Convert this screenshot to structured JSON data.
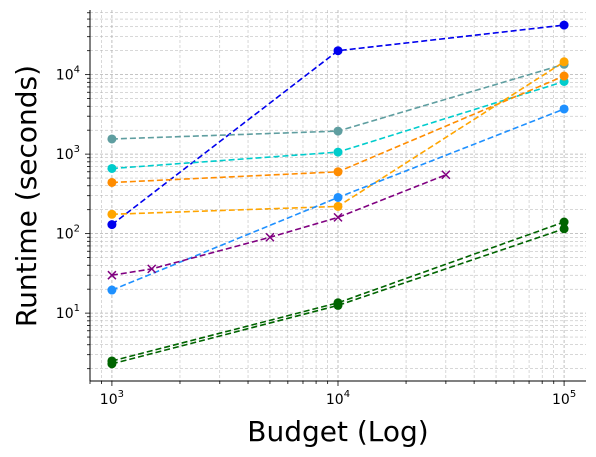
{
  "chart_data": {
    "type": "line",
    "xlabel": "Budget (Log)",
    "ylabel": "Runtime (seconds)",
    "xscale": "log",
    "yscale": "log",
    "xlim": [
      800,
      125000
    ],
    "ylim": [
      1.4,
      65000
    ],
    "grid": true,
    "x_ticks": [
      {
        "value": 1000,
        "base": "10",
        "exp": "3"
      },
      {
        "value": 10000,
        "base": "10",
        "exp": "4"
      },
      {
        "value": 100000,
        "base": "10",
        "exp": "5"
      }
    ],
    "y_ticks": [
      {
        "value": 10,
        "base": "10",
        "exp": "1"
      },
      {
        "value": 100,
        "base": "10",
        "exp": "2"
      },
      {
        "value": 1000,
        "base": "10",
        "exp": "3"
      },
      {
        "value": 10000,
        "base": "10",
        "exp": "4"
      }
    ],
    "series": [
      {
        "color": "#0000ee",
        "marker": "circle",
        "x": [
          1000,
          10000,
          100000
        ],
        "y": [
          130,
          20000,
          42000
        ]
      },
      {
        "color": "#5f9ea0",
        "marker": "circle",
        "x": [
          1000,
          10000,
          100000
        ],
        "y": [
          1550,
          1950,
          13500
        ]
      },
      {
        "color": "#00cccc",
        "marker": "circle",
        "x": [
          1000,
          10000,
          100000
        ],
        "y": [
          660,
          1060,
          8200
        ]
      },
      {
        "color": "#ff8c00",
        "marker": "circle",
        "x": [
          1000,
          10000,
          100000
        ],
        "y": [
          440,
          600,
          9600
        ]
      },
      {
        "color": "#ffa500",
        "marker": "circle",
        "x": [
          1000,
          10000,
          100000
        ],
        "y": [
          175,
          220,
          14500
        ]
      },
      {
        "color": "#1e90ff",
        "marker": "circle",
        "x": [
          1000,
          10000,
          100000
        ],
        "y": [
          19.5,
          285,
          3700
        ]
      },
      {
        "color": "#800080",
        "marker": "x",
        "x": [
          1000,
          1500,
          5000,
          10000,
          30000
        ],
        "y": [
          30,
          36,
          90,
          160,
          550
        ]
      },
      {
        "color": "#006400",
        "marker": "circle",
        "x": [
          1000,
          10000,
          100000
        ],
        "y": [
          2.5,
          13.5,
          140
        ]
      },
      {
        "color": "#006400",
        "marker": "circle",
        "x": [
          1000,
          10000,
          100000
        ],
        "y": [
          2.3,
          12.5,
          115
        ]
      }
    ]
  }
}
